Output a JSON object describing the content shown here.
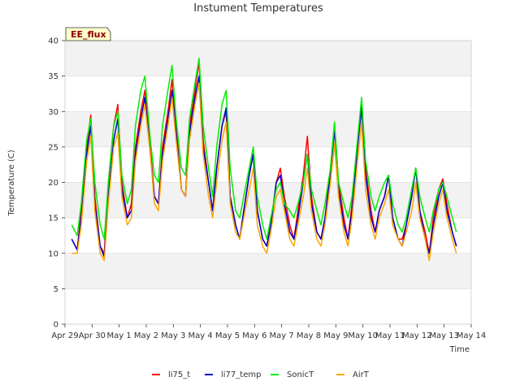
{
  "chart_data": {
    "type": "line",
    "title": "Instument Temperatures",
    "xlabel": "Time",
    "ylabel": "Temperature (C)",
    "badge": "EE_flux",
    "ylim": [
      0,
      40
    ],
    "yticks": [
      0,
      5,
      10,
      15,
      20,
      25,
      30,
      35,
      40
    ],
    "xlim": [
      0,
      15
    ],
    "xticks": [
      {
        "x": 0,
        "label": "Apr 29"
      },
      {
        "x": 1,
        "label": "Apr 30"
      },
      {
        "x": 2,
        "label": "May 1"
      },
      {
        "x": 3,
        "label": "May 2"
      },
      {
        "x": 4,
        "label": "May 3"
      },
      {
        "x": 5,
        "label": "May 4"
      },
      {
        "x": 6,
        "label": "May 5"
      },
      {
        "x": 7,
        "label": "May 6"
      },
      {
        "x": 8,
        "label": "May 7"
      },
      {
        "x": 9,
        "label": "May 8"
      },
      {
        "x": 10,
        "label": "May 9"
      },
      {
        "x": 11,
        "label": "May 10"
      },
      {
        "x": 12,
        "label": "May 11"
      },
      {
        "x": 13,
        "label": "May 12"
      },
      {
        "x": 14,
        "label": "May 13"
      },
      {
        "x": 15,
        "label": "May 14"
      }
    ],
    "grid": true,
    "legend_position": "bottom",
    "x": [
      0.25,
      0.45,
      0.6,
      0.8,
      0.95,
      1.1,
      1.3,
      1.45,
      1.6,
      1.8,
      1.95,
      2.1,
      2.3,
      2.45,
      2.6,
      2.8,
      2.95,
      3.15,
      3.3,
      3.45,
      3.6,
      3.8,
      3.95,
      4.1,
      4.3,
      4.45,
      4.6,
      4.8,
      4.95,
      5.1,
      5.3,
      5.45,
      5.6,
      5.8,
      5.95,
      6.1,
      6.3,
      6.45,
      6.6,
      6.8,
      6.95,
      7.1,
      7.3,
      7.45,
      7.6,
      7.8,
      7.95,
      8.1,
      8.3,
      8.45,
      8.6,
      8.8,
      8.95,
      9.1,
      9.3,
      9.45,
      9.6,
      9.8,
      9.95,
      10.1,
      10.3,
      10.45,
      10.6,
      10.8,
      10.95,
      11.1,
      11.3,
      11.45,
      11.6,
      11.8,
      11.95,
      12.1,
      12.3,
      12.45,
      12.6,
      12.8,
      12.95,
      13.1,
      13.3,
      13.45,
      13.6,
      13.8,
      13.95,
      14.1,
      14.3,
      14.45
    ],
    "series": [
      {
        "name": "li75_t",
        "color": "#ff0000",
        "values": [
          12,
          10.5,
          16,
          25,
          29.5,
          18,
          11,
          10,
          20,
          28,
          31,
          20,
          15,
          17,
          25,
          30,
          33,
          25,
          18,
          17,
          25,
          30,
          34.5,
          28,
          19,
          18,
          28,
          33,
          37,
          26,
          20,
          16,
          22,
          28,
          30,
          18,
          14,
          12,
          16,
          21,
          24,
          16,
          12,
          11,
          14,
          20,
          22,
          18,
          14,
          12,
          16,
          21,
          26.5,
          18,
          13,
          12,
          15,
          22,
          28,
          20,
          15,
          12,
          17,
          25,
          31.5,
          22,
          16,
          13,
          16,
          18,
          21,
          15,
          12,
          12,
          14,
          18,
          22,
          16,
          13,
          10,
          15,
          19,
          20.5,
          17,
          13,
          11
        ]
      },
      {
        "name": "li77_temp",
        "color": "#0000cc",
        "values": [
          12,
          10.5,
          15,
          24,
          28,
          17,
          11,
          9.5,
          18,
          26,
          29,
          19,
          15,
          16,
          24,
          29,
          32,
          24,
          18,
          17,
          24,
          29,
          33,
          27,
          19,
          18,
          27,
          32,
          35,
          25,
          20,
          16,
          22,
          28,
          30.5,
          18,
          14,
          12,
          16,
          21,
          24,
          16,
          12,
          11,
          14,
          20,
          21,
          17,
          13,
          12,
          15,
          20,
          24,
          17,
          13,
          12,
          15,
          21,
          27.5,
          19,
          14,
          12,
          16,
          25,
          30.5,
          21,
          15,
          13,
          16,
          18,
          21,
          15,
          12,
          11,
          14,
          18,
          22,
          16,
          12,
          10,
          14,
          18,
          20,
          16,
          13,
          11
        ]
      },
      {
        "name": "SonicT",
        "color": "#00ee00",
        "values": [
          14,
          12.5,
          17,
          26,
          29,
          20,
          14,
          12,
          20,
          28,
          30,
          21,
          17,
          19,
          28,
          33,
          35,
          26,
          21,
          20,
          28,
          33,
          36.5,
          29,
          22,
          21,
          29,
          34,
          37.5,
          28,
          22,
          18,
          25,
          31,
          33,
          22,
          16,
          15,
          18,
          22,
          25,
          18,
          14,
          12,
          15,
          19,
          20,
          17,
          16,
          15,
          17,
          20,
          24,
          19,
          16,
          14,
          17,
          22,
          28.5,
          20,
          17,
          15,
          18,
          26,
          32,
          23,
          18,
          16,
          18,
          20,
          21,
          17,
          14,
          13,
          15,
          19,
          22,
          18,
          15,
          13,
          16,
          19,
          20,
          18,
          15,
          13
        ]
      },
      {
        "name": "AirT",
        "color": "#ffa500",
        "values": [
          10,
          10,
          14,
          23,
          26.5,
          16,
          10,
          9,
          17,
          25,
          27,
          18,
          14,
          15,
          23,
          28,
          31,
          24,
          17,
          16,
          23,
          28,
          32,
          26,
          19,
          18,
          26,
          31,
          34,
          24,
          18,
          15,
          20,
          26,
          28.5,
          17,
          13,
          12,
          15,
          19,
          22,
          14,
          11,
          10,
          13,
          18,
          19,
          16,
          12,
          11,
          14,
          18,
          22,
          16,
          12,
          11,
          14,
          20,
          25.5,
          18,
          13,
          11,
          15,
          23,
          28.5,
          19,
          14,
          12,
          15,
          17,
          19,
          14,
          12,
          11,
          13,
          16,
          20,
          15,
          12,
          9,
          13,
          17,
          19,
          15,
          12,
          10
        ]
      }
    ]
  }
}
